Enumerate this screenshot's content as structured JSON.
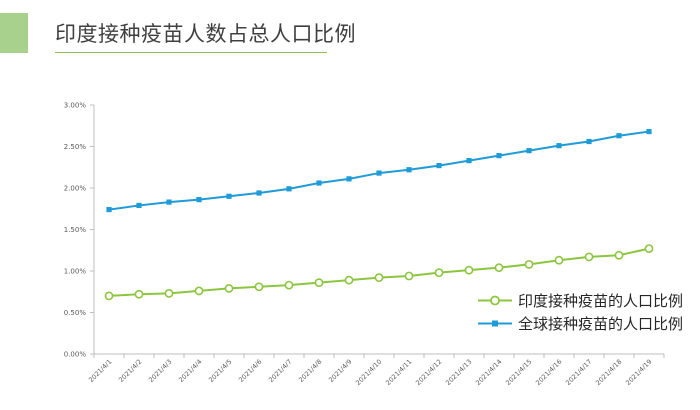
{
  "header": {
    "title": "印度接种疫苗人数占总人口比例",
    "accent_color": "#a9d18e",
    "underline_color": "#92c056"
  },
  "colors": {
    "india": "#8cc63f",
    "global": "#1f9bd7",
    "axis": "#bfbfbf",
    "tick_text": "#595959"
  },
  "legend": {
    "items": [
      {
        "key": "india",
        "label": "印度接种疫苗的人口比例",
        "marker": "circle"
      },
      {
        "key": "global",
        "label": "全球接种疫苗的人口比例",
        "marker": "square"
      }
    ]
  },
  "chart_data": {
    "type": "line",
    "title": "",
    "xlabel": "",
    "ylabel": "",
    "ylim": [
      0,
      0.03
    ],
    "y_ticks": [
      "0.00%",
      "0.50%",
      "1.00%",
      "1.50%",
      "2.00%",
      "2.50%",
      "3.00%"
    ],
    "grid": false,
    "legend_position": "bottom-right",
    "x": [
      "2021/4/1",
      "2021/4/2",
      "2021/4/3",
      "2021/4/4",
      "2021/4/5",
      "2021/4/6",
      "2021/4/7",
      "2021/4/8",
      "2021/4/9",
      "2021/4/10",
      "2021/4/11",
      "2021/4/12",
      "2021/4/13",
      "2021/4/14",
      "2021/4/15",
      "2021/4/16",
      "2021/4/17",
      "2021/4/18",
      "2021/4/19"
    ],
    "series": [
      {
        "name": "印度接种疫苗的人口比例",
        "key": "india",
        "marker": "circle",
        "values": [
          0.007,
          0.0072,
          0.0073,
          0.0076,
          0.0079,
          0.0081,
          0.0083,
          0.0086,
          0.0089,
          0.0092,
          0.0094,
          0.0098,
          0.0101,
          0.0104,
          0.0108,
          0.0113,
          0.0117,
          0.0119,
          0.0127
        ]
      },
      {
        "name": "全球接种疫苗的人口比例",
        "key": "global",
        "marker": "square",
        "values": [
          0.0174,
          0.0179,
          0.0183,
          0.0186,
          0.019,
          0.0194,
          0.0199,
          0.0206,
          0.0211,
          0.0218,
          0.0222,
          0.0227,
          0.0233,
          0.0239,
          0.0245,
          0.0251,
          0.0256,
          0.0263,
          0.0268
        ]
      }
    ]
  }
}
